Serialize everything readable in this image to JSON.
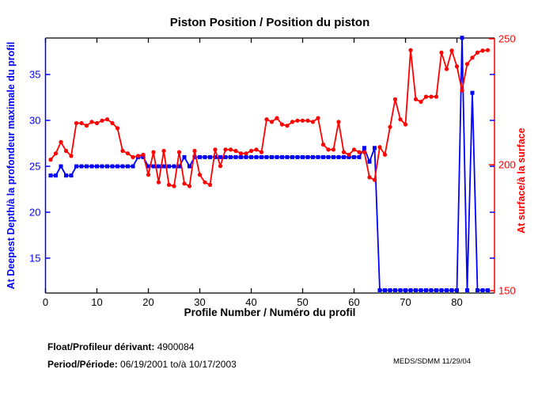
{
  "colors": {
    "blue": "#0000ff",
    "red": "#ff0000",
    "black": "#000000"
  },
  "chart_data": {
    "type": "line",
    "title": "Piston Position / Position du piston",
    "xlabel": "Profile Number / Numéro du profil",
    "grid": false,
    "legend": "none",
    "x_ticks": [
      0,
      10,
      20,
      30,
      40,
      50,
      60,
      70,
      80
    ],
    "xlim": [
      0,
      87.3
    ],
    "left_axis": {
      "label": "At Deepest Depth/à la profondeur maximale du profil",
      "color": "#0000ff",
      "ticks": [
        15,
        20,
        25,
        30,
        35
      ],
      "ylim": [
        11.2,
        38.97
      ]
    },
    "right_axis": {
      "label": "At surface/à la surface",
      "color": "#ff0000",
      "ticks": [
        150,
        200,
        250
      ],
      "ylim": [
        149.06,
        250.3
      ]
    },
    "series": [
      {
        "name": "piston-position-at-deepest-depth",
        "axis": "left",
        "color": "#0000ff",
        "marker": "square",
        "x_first": 1,
        "x_step": 1,
        "values": [
          24,
          24,
          25,
          24,
          24,
          25,
          25,
          25,
          25,
          25,
          25,
          25,
          25,
          25,
          25,
          25,
          25,
          26,
          26,
          25,
          25,
          25,
          25,
          25,
          25,
          25,
          26,
          25,
          26,
          26,
          26,
          26,
          26,
          26,
          26,
          26,
          26,
          26,
          26,
          26,
          26,
          26,
          26,
          26,
          26,
          26,
          26,
          26,
          26,
          26,
          26,
          26,
          26,
          26,
          26,
          26,
          26,
          26,
          26,
          26,
          26,
          27,
          25.5,
          27,
          11.5,
          11.5,
          11.5,
          11.5,
          11.5,
          11.5,
          11.5,
          11.5,
          11.5,
          11.5,
          11.5,
          11.5,
          11.5,
          11.5,
          11.5,
          11.5,
          39,
          11.5,
          33,
          11.5,
          11.5,
          11.5
        ]
      },
      {
        "name": "piston-position-at-surface",
        "axis": "right",
        "color": "#ff0000",
        "marker": "circle",
        "x_first": 1,
        "x_step": 1,
        "values": [
          202,
          204.5,
          209,
          205.5,
          203.5,
          216.5,
          216.5,
          215.5,
          217,
          216.5,
          217.5,
          218,
          216.5,
          214.5,
          205.5,
          204.5,
          203,
          203.5,
          204,
          196,
          205,
          193,
          205.5,
          192,
          191.5,
          205,
          192.5,
          191.5,
          205.5,
          196,
          193,
          192,
          206,
          199.5,
          206,
          206,
          205.5,
          204.5,
          204.5,
          205.5,
          206,
          205,
          218,
          217,
          218.5,
          216,
          215.5,
          217,
          217.5,
          217.5,
          217.5,
          217,
          218.5,
          208,
          206,
          206,
          217,
          205,
          204,
          206,
          205,
          205,
          195,
          194,
          207,
          204,
          215,
          226,
          218,
          216,
          245.5,
          226,
          225,
          227,
          227,
          227,
          244.5,
          238,
          245.3,
          239,
          229.5,
          240,
          242.5,
          244.5,
          245.3,
          245.5
        ]
      }
    ]
  },
  "footer": {
    "float_label": "Float/Profileur dérivant:",
    "float_value": "4900084",
    "period_label": "Period/Période:",
    "period_value": "06/19/2001  to/à  10/17/2003",
    "credit": "MEDS/SDMM  11/29/04"
  }
}
